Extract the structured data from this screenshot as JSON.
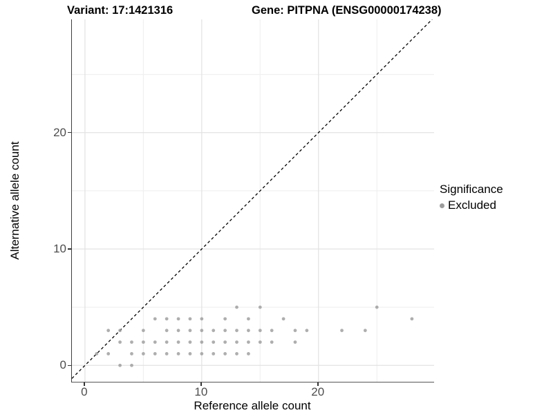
{
  "chart_data": {
    "type": "scatter",
    "title_left": "Variant: 17:1421316",
    "title_right": "Gene: PITPNA (ENSG00000174238)",
    "xlabel": "Reference allele count",
    "ylabel": "Alternative allele count",
    "x_ticks": [
      0,
      10,
      20
    ],
    "y_ticks": [
      0,
      10,
      20
    ],
    "x_minor_gridlines": [
      5,
      15,
      25
    ],
    "y_minor_gridlines": [
      5,
      15,
      25
    ],
    "xlim": [
      -1.12,
      29.9
    ],
    "ylim": [
      -1.41,
      29.73
    ],
    "grid": true,
    "identity_line": {
      "type": "dashed",
      "equation": "y = x",
      "color": "#000000"
    },
    "legend": {
      "position": "right",
      "title": "Significance",
      "items": [
        {
          "label": "Excluded",
          "color": "#9c9c9c"
        }
      ]
    },
    "series": [
      {
        "name": "Excluded",
        "color": "#9c9c9c",
        "points": [
          [
            3,
            0
          ],
          [
            4,
            0
          ],
          [
            1,
            1
          ],
          [
            2,
            1
          ],
          [
            4,
            1
          ],
          [
            5,
            1
          ],
          [
            6,
            1
          ],
          [
            7,
            1
          ],
          [
            8,
            1
          ],
          [
            9,
            1
          ],
          [
            10,
            1
          ],
          [
            11,
            1
          ],
          [
            12,
            1
          ],
          [
            13,
            1
          ],
          [
            14,
            1
          ],
          [
            3,
            2
          ],
          [
            4,
            2
          ],
          [
            5,
            2
          ],
          [
            6,
            2
          ],
          [
            7,
            2
          ],
          [
            8,
            2
          ],
          [
            9,
            2
          ],
          [
            10,
            2
          ],
          [
            11,
            2
          ],
          [
            12,
            2
          ],
          [
            13,
            2
          ],
          [
            14,
            2
          ],
          [
            15,
            2
          ],
          [
            16,
            2
          ],
          [
            18,
            2
          ],
          [
            2,
            3
          ],
          [
            3,
            3
          ],
          [
            5,
            3
          ],
          [
            7,
            3
          ],
          [
            8,
            3
          ],
          [
            9,
            3
          ],
          [
            10,
            3
          ],
          [
            11,
            3
          ],
          [
            12,
            3
          ],
          [
            13,
            3
          ],
          [
            14,
            3
          ],
          [
            15,
            3
          ],
          [
            16,
            3
          ],
          [
            18,
            3
          ],
          [
            19,
            3
          ],
          [
            22,
            3
          ],
          [
            24,
            3
          ],
          [
            6,
            4
          ],
          [
            7,
            4
          ],
          [
            8,
            4
          ],
          [
            9,
            4
          ],
          [
            10,
            4
          ],
          [
            12,
            4
          ],
          [
            14,
            4
          ],
          [
            17,
            4
          ],
          [
            28,
            4
          ],
          [
            13,
            5
          ],
          [
            15,
            5
          ],
          [
            25,
            5
          ]
        ]
      }
    ]
  },
  "colors": {
    "point": "#9c9c9c",
    "grid_major": "#e2e2e2",
    "grid_minor": "#f0f0f0",
    "axis_line": "#3c3c3c",
    "tick_label": "#4d4d4d",
    "identity_line": "#000000"
  }
}
